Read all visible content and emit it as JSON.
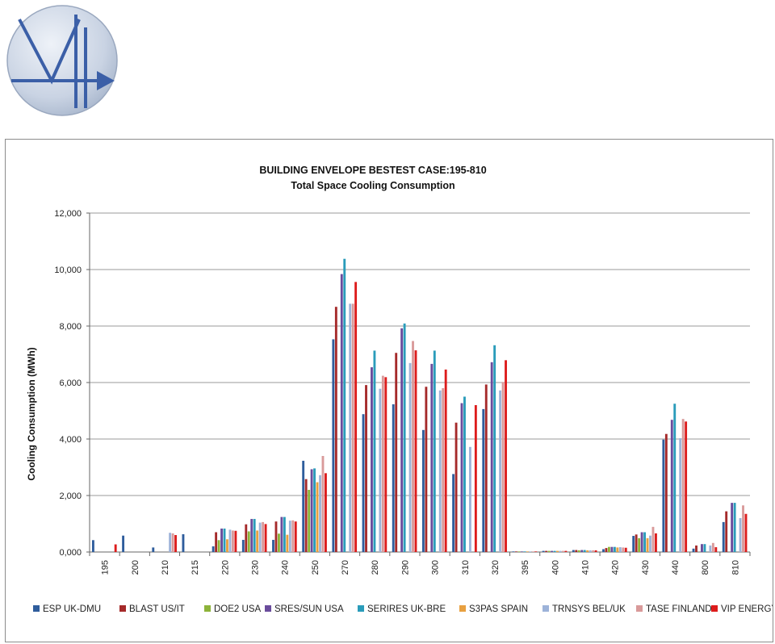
{
  "logo": {
    "icon": "v4-logo-icon"
  },
  "chart_data": {
    "type": "bar",
    "title": "BUILDING ENVELOPE BESTEST CASE:195-810",
    "subtitle": "Total Space Cooling  Consumption",
    "xlabel": "",
    "ylabel": "Cooling Consumption (MWh)",
    "ylim": [
      0,
      12000
    ],
    "yticks": [
      "0,000",
      "2,000",
      "4,000",
      "6,000",
      "8,000",
      "10,000",
      "12,000"
    ],
    "grid": true,
    "legend_position": "bottom",
    "categories": [
      "195",
      "200",
      "210",
      "215",
      "220",
      "230",
      "240",
      "250",
      "270",
      "280",
      "290",
      "300",
      "310",
      "320",
      "395",
      "400",
      "410",
      "420",
      "430",
      "440",
      "800",
      "810"
    ],
    "series": [
      {
        "name": "ESP UK-DMU",
        "color": "#2f5d9c",
        "values": [
          420,
          580,
          160,
          630,
          200,
          430,
          430,
          3230,
          7530,
          4880,
          5230,
          4320,
          2760,
          5060,
          20,
          40,
          70,
          100,
          570,
          3980,
          120,
          1060
        ]
      },
      {
        "name": "BLAST US/IT",
        "color": "#a52a2a",
        "values": [
          null,
          null,
          null,
          null,
          700,
          980,
          1080,
          2580,
          8680,
          5910,
          7050,
          5850,
          4580,
          5930,
          20,
          40,
          70,
          140,
          620,
          4180,
          230,
          1440
        ]
      },
      {
        "name": "DOE2 USA",
        "color": "#8db33a",
        "values": [
          null,
          null,
          null,
          null,
          420,
          730,
          650,
          2200,
          null,
          null,
          null,
          null,
          null,
          null,
          20,
          40,
          60,
          180,
          490,
          null,
          null,
          null
        ]
      },
      {
        "name": "SRES/SUN USA",
        "color": "#6a4c9c",
        "values": [
          null,
          null,
          null,
          null,
          830,
          1170,
          1240,
          2930,
          9840,
          6540,
          7920,
          6660,
          5270,
          6720,
          20,
          40,
          70,
          180,
          700,
          4680,
          280,
          1740
        ]
      },
      {
        "name": "SERIRES UK-BRE",
        "color": "#2a9cba",
        "values": [
          null,
          null,
          null,
          null,
          830,
          1170,
          1240,
          2960,
          10380,
          7130,
          8090,
          7130,
          5500,
          7320,
          20,
          40,
          70,
          180,
          700,
          5250,
          280,
          1740
        ]
      },
      {
        "name": "S3PAS SPAIN",
        "color": "#e8a040",
        "values": [
          null,
          null,
          null,
          null,
          450,
          760,
          610,
          2470,
          null,
          null,
          null,
          null,
          null,
          null,
          20,
          40,
          60,
          160,
          490,
          null,
          null,
          null
        ]
      },
      {
        "name": "TRNSYS BEL/UK",
        "color": "#9db3d9",
        "values": [
          null,
          null,
          680,
          null,
          790,
          1040,
          1110,
          2720,
          8790,
          5780,
          6690,
          5720,
          3720,
          5720,
          20,
          40,
          60,
          170,
          580,
          4030,
          230,
          1200
        ]
      },
      {
        "name": "TASE FINLAND",
        "color": "#d99a9a",
        "values": [
          null,
          null,
          660,
          null,
          760,
          1060,
          1120,
          3400,
          8790,
          6240,
          7470,
          5800,
          null,
          6020,
          20,
          40,
          60,
          160,
          890,
          4710,
          320,
          1650
        ]
      },
      {
        "name": "VIP ENERGY",
        "color": "#dd1c1c",
        "values": [
          270,
          null,
          600,
          null,
          750,
          990,
          1080,
          2790,
          9560,
          6190,
          7140,
          6460,
          5200,
          6790,
          20,
          40,
          60,
          150,
          660,
          4620,
          170,
          1350
        ]
      }
    ]
  }
}
